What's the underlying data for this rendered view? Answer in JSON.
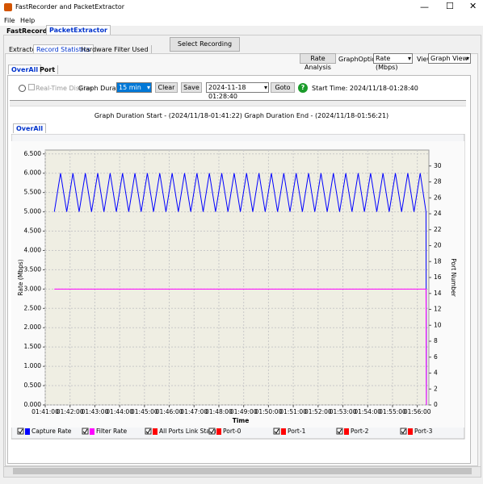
{
  "window": {
    "title": "FastRecorder and PacketExtractor"
  },
  "menu": [
    "File",
    "Help"
  ],
  "main_tabs": [
    "FastRecorder",
    "PacketExtractor"
  ],
  "sub_tabs": [
    "Extractor",
    "Record Statistics",
    "Hardware Filter Used"
  ],
  "toolbar": {
    "select_recording": "Select Recording",
    "rate_analysis": "Rate Analysis",
    "graph_options_label": "GraphOptions",
    "graph_options_value": "Rate (Mbps)",
    "view_label": "View",
    "view_value": "Graph View"
  },
  "view_tabs": [
    "OverAll",
    "Port"
  ],
  "controls": {
    "real_time": "Real-Time Display",
    "graph_duration_label": "Graph Duration",
    "graph_duration_value": "15 min",
    "clear": "Clear",
    "save": "Save",
    "datetime": "2024-11-18 01:28:40",
    "goto": "Goto",
    "help": "?",
    "start_time": "Start Time: 2024/11/18-01:28:40"
  },
  "duration_text": "Graph Duration Start - (2024/11/18-01:41:22) Graph Duration End - (2024/11/18-01:56:21)",
  "graph_tab": "OverAll",
  "chart_data": {
    "type": "line",
    "xlabel": "Time",
    "ylabel": "Rate (Mbps)",
    "y2label": "Port Number",
    "xlim": [
      "01:41:00",
      "01:56:28"
    ],
    "xticks": [
      "01:41:00",
      "01:42:00",
      "01:43:00",
      "01:44:00",
      "01:45:00",
      "01:46:00",
      "01:47:00",
      "01:48:00",
      "01:49:00",
      "01:50:00",
      "01:51:00",
      "01:52:00",
      "01:53:00",
      "01:54:00",
      "01:55:00",
      "01:56:00"
    ],
    "ylim": [
      0,
      6.6
    ],
    "yticks": [
      {
        "value": 0,
        "label": "0.000"
      },
      {
        "value": 0.5,
        "label": "0.500"
      },
      {
        "value": 1,
        "label": "1.000"
      },
      {
        "value": 1.5,
        "label": "1.500"
      },
      {
        "value": 2,
        "label": "2.000"
      },
      {
        "value": 2.5,
        "label": "2.500"
      },
      {
        "value": 3,
        "label": "3.000"
      },
      {
        "value": 3.5,
        "label": "3.500"
      },
      {
        "value": 4,
        "label": "4.000"
      },
      {
        "value": 4.5,
        "label": "4.500"
      },
      {
        "value": 5,
        "label": "5.000"
      },
      {
        "value": 5.5,
        "label": "5.500"
      },
      {
        "value": 6,
        "label": "6.000"
      },
      {
        "value": 6.5,
        "label": "6.500"
      }
    ],
    "y2lim": [
      0,
      32
    ],
    "y2ticks": [
      0,
      2,
      4,
      6,
      8,
      10,
      12,
      14,
      16,
      18,
      20,
      22,
      24,
      26,
      28,
      30
    ],
    "grid": true,
    "series": [
      {
        "name": "Capture Rate",
        "color": "#0000ff",
        "x": [
          "01:41:22",
          "01:41:37",
          "01:41:52",
          "01:42:07",
          "01:42:22",
          "01:42:37",
          "01:42:52",
          "01:43:07",
          "01:43:22",
          "01:43:37",
          "01:43:52",
          "01:44:07",
          "01:44:22",
          "01:44:37",
          "01:44:52",
          "01:45:07",
          "01:45:22",
          "01:45:37",
          "01:45:52",
          "01:46:07",
          "01:46:22",
          "01:46:37",
          "01:46:52",
          "01:47:07",
          "01:47:22",
          "01:47:37",
          "01:47:52",
          "01:48:07",
          "01:48:22",
          "01:48:37",
          "01:48:52",
          "01:49:07",
          "01:49:22",
          "01:49:37",
          "01:49:52",
          "01:50:07",
          "01:50:22",
          "01:50:37",
          "01:50:52",
          "01:51:07",
          "01:51:22",
          "01:51:37",
          "01:51:52",
          "01:52:07",
          "01:52:22",
          "01:52:37",
          "01:52:52",
          "01:53:07",
          "01:53:22",
          "01:53:37",
          "01:53:52",
          "01:54:07",
          "01:54:22",
          "01:54:37",
          "01:54:52",
          "01:55:07",
          "01:55:22",
          "01:55:37",
          "01:55:52",
          "01:56:07",
          "01:56:21",
          "01:56:22"
        ],
        "values": [
          5,
          6,
          5,
          6,
          5,
          6,
          5,
          6,
          5,
          6,
          5,
          6,
          5,
          6,
          5,
          6,
          5,
          6,
          5,
          6,
          5,
          6,
          5,
          6,
          5,
          6,
          5,
          6,
          5,
          6,
          5,
          6,
          5,
          6,
          5,
          6,
          5,
          6,
          5,
          6,
          5,
          6,
          5,
          6,
          5,
          6,
          5,
          6,
          5,
          6,
          5,
          6,
          5,
          6,
          5,
          6,
          5,
          6,
          5,
          6,
          5,
          0
        ]
      },
      {
        "name": "Filter Rate",
        "color": "#ff00ff",
        "x": [
          "01:41:22",
          "01:56:21",
          "01:56:22"
        ],
        "values": [
          3,
          3,
          0
        ]
      },
      {
        "name": "All Ports Link Status",
        "color": "#ff0000",
        "x": [],
        "values": []
      },
      {
        "name": "Port-0",
        "color": "#ff0000",
        "x": [],
        "values": []
      },
      {
        "name": "Port-1",
        "color": "#ff0000",
        "x": [],
        "values": []
      },
      {
        "name": "Port-2",
        "color": "#ff0000",
        "x": [],
        "values": []
      },
      {
        "name": "Port-3",
        "color": "#ff0000",
        "x": [],
        "values": []
      }
    ]
  }
}
